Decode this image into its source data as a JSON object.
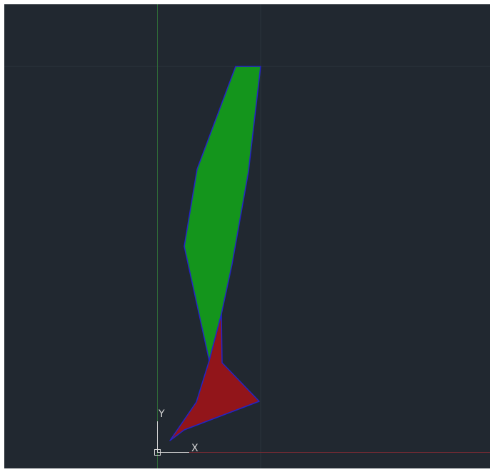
{
  "ucs_icon": {
    "y_label": "Y",
    "x_label": "X"
  }
}
